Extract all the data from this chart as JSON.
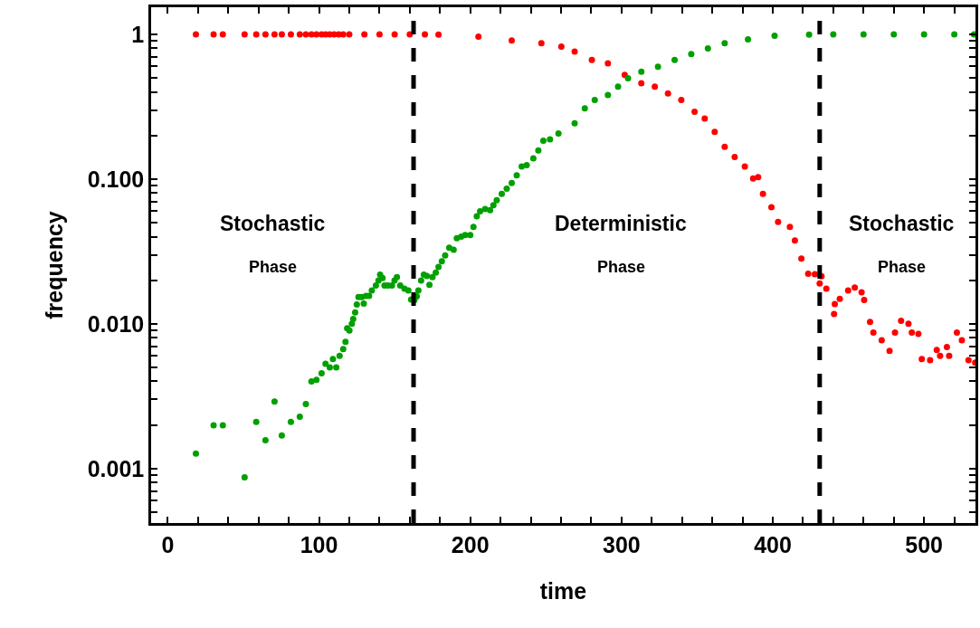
{
  "chart_data": {
    "type": "scatter",
    "xlabel": "time",
    "ylabel": "frequency",
    "log": "y",
    "marker": "circle",
    "xlim": [
      -11,
      534
    ],
    "ylim": [
      0.00042,
      1.54
    ],
    "xticks": [
      0,
      {
        "value": 20,
        "label": null
      },
      {
        "value": 40,
        "label": null
      },
      {
        "value": 60,
        "label": null
      },
      {
        "value": 80,
        "label": null
      },
      100,
      {
        "value": 120,
        "label": null
      },
      {
        "value": 140,
        "label": null
      },
      {
        "value": 160,
        "label": null
      },
      {
        "value": 180,
        "label": null
      },
      200,
      {
        "value": 220,
        "label": null
      },
      {
        "value": 240,
        "label": null
      },
      {
        "value": 260,
        "label": null
      },
      {
        "value": 280,
        "label": null
      },
      300,
      {
        "value": 320,
        "label": null
      },
      {
        "value": 340,
        "label": null
      },
      {
        "value": 360,
        "label": null
      },
      {
        "value": 380,
        "label": null
      },
      400,
      {
        "value": 420,
        "label": null
      },
      {
        "value": 440,
        "label": null
      },
      {
        "value": 460,
        "label": null
      },
      {
        "value": 480,
        "label": null
      },
      500,
      {
        "value": 520,
        "label": null
      }
    ],
    "yticks": [
      {
        "value": 0.0005,
        "label": null
      },
      {
        "value": 0.0006,
        "label": null
      },
      {
        "value": 0.0007,
        "label": null
      },
      {
        "value": 0.0008,
        "label": null
      },
      {
        "value": 0.0009,
        "label": null
      },
      {
        "value": 0.001,
        "label": "0.001"
      },
      {
        "value": 0.002,
        "label": null
      },
      {
        "value": 0.003,
        "label": null
      },
      {
        "value": 0.004,
        "label": null
      },
      {
        "value": 0.005,
        "label": null
      },
      {
        "value": 0.006,
        "label": null
      },
      {
        "value": 0.007,
        "label": null
      },
      {
        "value": 0.008,
        "label": null
      },
      {
        "value": 0.009,
        "label": null
      },
      {
        "value": 0.01,
        "label": "0.010"
      },
      {
        "value": 0.02,
        "label": null
      },
      {
        "value": 0.03,
        "label": null
      },
      {
        "value": 0.04,
        "label": null
      },
      {
        "value": 0.05,
        "label": null
      },
      {
        "value": 0.06,
        "label": null
      },
      {
        "value": 0.07,
        "label": null
      },
      {
        "value": 0.08,
        "label": null
      },
      {
        "value": 0.09,
        "label": null
      },
      {
        "value": 0.1,
        "label": "0.100"
      },
      {
        "value": 0.2,
        "label": null
      },
      {
        "value": 0.3,
        "label": null
      },
      {
        "value": 0.4,
        "label": null
      },
      {
        "value": 0.5,
        "label": null
      },
      {
        "value": 0.6,
        "label": null
      },
      {
        "value": 0.7,
        "label": null
      },
      {
        "value": 0.8,
        "label": null
      },
      {
        "value": 0.9,
        "label": null
      },
      1
    ],
    "series": [
      {
        "color": "#ff0000",
        "x": [
          18.6,
          30.3,
          36.4,
          50.8,
          58.5,
          64.6,
          70.6,
          75.4,
          81.4,
          87.3,
          91.3,
          95,
          98.3,
          101.7,
          104.3,
          107,
          110,
          113,
          116,
          120,
          130,
          140,
          150,
          160,
          170,
          179,
          205.4,
          227.4,
          247,
          260.2,
          269,
          280.4,
          291,
          302.1,
          313.1,
          322,
          330.7,
          339.5,
          348.3,
          355,
          361.6,
          368.2,
          374.8,
          381.5,
          387,
          390.3,
          393.5,
          399.1,
          403.5,
          411.3,
          414.6,
          418.9,
          423.4,
          427.8,
          431,
          432.2,
          435.4,
          440.5,
          441,
          444.3,
          449.8,
          454.2,
          458.7,
          460.4,
          464.3,
          466.5,
          472,
          477.2,
          480.8,
          484.8,
          489.7,
          491.9,
          496.3,
          498.5,
          504,
          508.4,
          510.6,
          515.1,
          516.6,
          521.7,
          525,
          529.4,
          533.8
        ],
        "values": [
          1,
          1,
          1,
          1,
          1,
          1,
          1,
          1,
          1,
          1,
          1,
          1,
          1,
          1,
          1,
          1,
          1,
          1,
          1,
          1,
          1,
          1,
          1,
          1,
          1,
          0.995,
          0.966,
          0.906,
          0.869,
          0.824,
          0.76,
          0.666,
          0.631,
          0.524,
          0.459,
          0.435,
          0.391,
          0.352,
          0.292,
          0.262,
          0.212,
          0.167,
          0.142,
          0.122,
          0.101,
          0.103,
          0.079,
          0.064,
          0.0505,
          0.0467,
          0.0377,
          0.0282,
          0.0222,
          0.022,
          0.019,
          0.0213,
          0.0175,
          0.0117,
          0.0137,
          0.0149,
          0.017,
          0.0178,
          0.0165,
          0.0146,
          0.0103,
          0.0087,
          0.0077,
          0.0065,
          0.0087,
          0.0105,
          0.01,
          0.0087,
          0.0085,
          0.0057,
          0.0056,
          0.0066,
          0.006,
          0.0069,
          0.006,
          0.0087,
          0.0077,
          0.0056,
          0.0054
        ]
      },
      {
        "color": "#00a000",
        "x": [
          18.6,
          30.3,
          36.4,
          50.8,
          58.5,
          64.6,
          70.6,
          75.4,
          81.4,
          87.3,
          91.3,
          95,
          98.3,
          101.7,
          104.3,
          107.1,
          109.2,
          111.4,
          113.6,
          116,
          117.5,
          118.6,
          120.1,
          121.7,
          122.6,
          123.9,
          125,
          126.1,
          128.3,
          129.6,
          131.1,
          133.1,
          134.9,
          137.6,
          139.3,
          140.4,
          142,
          143.3,
          145.5,
          148.2,
          149.9,
          151.5,
          153.7,
          156.5,
          159.1,
          160.9,
          163.1,
          164.6,
          165.7,
          167.5,
          169.3,
          171.3,
          173,
          175,
          177.2,
          179,
          181.2,
          183.4,
          186.1,
          189,
          191.1,
          194,
          196.6,
          200,
          202.1,
          204.3,
          206.5,
          209.8,
          213.1,
          215.3,
          217.5,
          220.8,
          224.1,
          227.4,
          230.7,
          234,
          237.3,
          241.7,
          245,
          248.3,
          252.7,
          258.3,
          269,
          275.7,
          282.3,
          291,
          297.7,
          304.3,
          313.1,
          324.1,
          335.1,
          346.1,
          357.1,
          368.2,
          383.6,
          401.2,
          424,
          440,
          460,
          480,
          500,
          520,
          533
        ],
        "values": [
          0.00127,
          0.00199,
          0.00199,
          0.00087,
          0.0021,
          0.00157,
          0.0029,
          0.00169,
          0.0021,
          0.00228,
          0.00279,
          0.004,
          0.0041,
          0.00455,
          0.0053,
          0.005,
          0.0057,
          0.005,
          0.006,
          0.0067,
          0.0075,
          0.0093,
          0.009,
          0.01,
          0.0108,
          0.012,
          0.0136,
          0.0153,
          0.0153,
          0.0138,
          0.0156,
          0.0156,
          0.017,
          0.0184,
          0.0199,
          0.0219,
          0.0207,
          0.0184,
          0.0184,
          0.0184,
          0.0199,
          0.021,
          0.0184,
          0.0175,
          0.017,
          0.0147,
          0.0146,
          0.0155,
          0.017,
          0.0199,
          0.0219,
          0.0214,
          0.0186,
          0.021,
          0.0226,
          0.0247,
          0.027,
          0.0297,
          0.0336,
          0.0325,
          0.039,
          0.04,
          0.041,
          0.041,
          0.0467,
          0.0553,
          0.06,
          0.062,
          0.061,
          0.066,
          0.0715,
          0.079,
          0.086,
          0.094,
          0.106,
          0.122,
          0.125,
          0.139,
          0.158,
          0.184,
          0.188,
          0.207,
          0.243,
          0.308,
          0.352,
          0.381,
          0.435,
          0.497,
          0.552,
          0.598,
          0.666,
          0.732,
          0.8,
          0.869,
          0.925,
          0.98,
          0.995,
          1,
          1,
          1,
          1,
          1,
          1
        ]
      }
    ],
    "ref_lines": [
      {
        "axis": "x",
        "value": 162.5,
        "color": "#000000",
        "line_style": "dashed"
      },
      {
        "axis": "x",
        "value": 431,
        "color": "#000000",
        "line_style": "dashed"
      }
    ],
    "annotations": [
      "Stochastic",
      "Phase",
      "Deterministic",
      "Phase",
      "Stochastic",
      "Phase"
    ]
  }
}
